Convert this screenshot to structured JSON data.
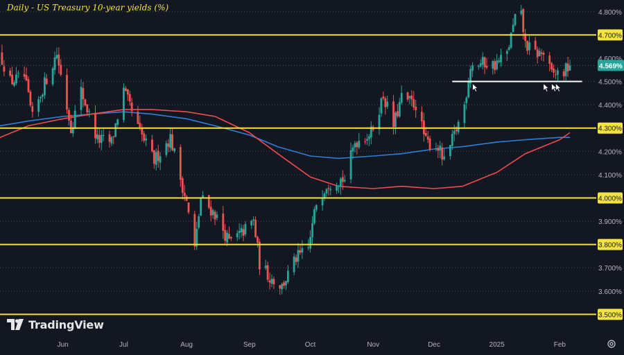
{
  "title": "Daily - US Treasury 10-year yields (%)",
  "brand": "TradingView",
  "icons": {
    "logo": "tradingview-logo-icon",
    "settings": "gear-icon"
  },
  "colors": {
    "background": "#131722",
    "up": "#26a69a",
    "down": "#ef5350",
    "level": "#f5e342",
    "ma_short": "#ef4b4b",
    "ma_long": "#2f7ed8",
    "support": "#ffffff"
  },
  "chart_data": {
    "type": "candlestick",
    "y_range": [
      3.4,
      4.85
    ],
    "yticks": [
      "4.800%",
      "4.700%",
      "4.600%",
      "4.500%",
      "4.400%",
      "4.300%",
      "4.200%",
      "4.100%",
      "4.000%",
      "3.900%",
      "3.800%",
      "3.700%",
      "3.600%",
      "3.500%"
    ],
    "ytick_values": [
      4.8,
      4.7,
      4.6,
      4.5,
      4.4,
      4.3,
      4.2,
      4.1,
      4.0,
      3.9,
      3.8,
      3.7,
      3.6,
      3.5
    ],
    "xticks": [
      "Jun",
      "Jul",
      "Aug",
      "Sep",
      "Oct",
      "Nov",
      "Dec",
      "2025",
      "Feb"
    ],
    "xtick_dates": [
      "2024-06-01",
      "2024-07-01",
      "2024-08-01",
      "2024-09-01",
      "2024-10-01",
      "2024-11-01",
      "2024-12-01",
      "2025-01-01",
      "2025-02-01"
    ],
    "x_range": [
      "2024-05-01",
      "2025-02-19"
    ],
    "current_value": 4.569,
    "current_label": "4.569%",
    "horizontal_levels": [
      4.7,
      4.3,
      4.0,
      3.8,
      3.5
    ],
    "horizontal_level_labels": [
      "4.700%",
      "4.300%",
      "4.000%",
      "3.800%",
      "3.500%"
    ],
    "support_line": {
      "value": 4.5,
      "from": "2024-12-10",
      "to": "2025-02-12"
    },
    "support_arrows": [
      "2024-12-20",
      "2025-01-24",
      "2025-01-28",
      "2025-01-30"
    ],
    "ma_long": [
      [
        "2024-05-01",
        4.31
      ],
      [
        "2024-05-15",
        4.33
      ],
      [
        "2024-06-01",
        4.35
      ],
      [
        "2024-06-15",
        4.36
      ],
      [
        "2024-07-01",
        4.37
      ],
      [
        "2024-07-15",
        4.36
      ],
      [
        "2024-08-01",
        4.34
      ],
      [
        "2024-08-15",
        4.31
      ],
      [
        "2024-09-01",
        4.27
      ],
      [
        "2024-09-15",
        4.22
      ],
      [
        "2024-10-01",
        4.18
      ],
      [
        "2024-10-15",
        4.17
      ],
      [
        "2024-11-01",
        4.18
      ],
      [
        "2024-11-15",
        4.19
      ],
      [
        "2024-12-01",
        4.21
      ],
      [
        "2024-12-15",
        4.22
      ],
      [
        "2025-01-01",
        4.24
      ],
      [
        "2025-01-15",
        4.25
      ],
      [
        "2025-02-01",
        4.26
      ],
      [
        "2025-02-06",
        4.26
      ]
    ],
    "ma_short": [
      [
        "2024-05-01",
        4.26
      ],
      [
        "2024-05-15",
        4.31
      ],
      [
        "2024-06-01",
        4.34
      ],
      [
        "2024-06-15",
        4.36
      ],
      [
        "2024-07-01",
        4.38
      ],
      [
        "2024-07-15",
        4.38
      ],
      [
        "2024-08-01",
        4.37
      ],
      [
        "2024-08-15",
        4.35
      ],
      [
        "2024-09-01",
        4.28
      ],
      [
        "2024-09-15",
        4.19
      ],
      [
        "2024-10-01",
        4.09
      ],
      [
        "2024-10-15",
        4.05
      ],
      [
        "2024-11-01",
        4.04
      ],
      [
        "2024-11-15",
        4.05
      ],
      [
        "2024-12-01",
        4.04
      ],
      [
        "2024-12-15",
        4.05
      ],
      [
        "2025-01-01",
        4.11
      ],
      [
        "2025-01-15",
        4.19
      ],
      [
        "2025-02-01",
        4.25
      ],
      [
        "2025-02-06",
        4.28
      ]
    ],
    "candle_path": [
      [
        "2024-05-01",
        4.62
      ],
      [
        "2024-05-06",
        4.5
      ],
      [
        "2024-05-13",
        4.52
      ],
      [
        "2024-05-17",
        4.34
      ],
      [
        "2024-05-22",
        4.47
      ],
      [
        "2024-05-29",
        4.62
      ],
      [
        "2024-06-05",
        4.3
      ],
      [
        "2024-06-10",
        4.46
      ],
      [
        "2024-06-18",
        4.25
      ],
      [
        "2024-06-25",
        4.24
      ],
      [
        "2024-07-01",
        4.46
      ],
      [
        "2024-07-08",
        4.3
      ],
      [
        "2024-07-16",
        4.16
      ],
      [
        "2024-07-24",
        4.26
      ],
      [
        "2024-08-01",
        3.98
      ],
      [
        "2024-08-05",
        3.78
      ],
      [
        "2024-08-08",
        4.0
      ],
      [
        "2024-08-15",
        3.93
      ],
      [
        "2024-08-22",
        3.81
      ],
      [
        "2024-08-27",
        3.84
      ],
      [
        "2024-09-03",
        3.9
      ],
      [
        "2024-09-06",
        3.72
      ],
      [
        "2024-09-11",
        3.66
      ],
      [
        "2024-09-17",
        3.62
      ],
      [
        "2024-09-24",
        3.74
      ],
      [
        "2024-09-30",
        3.78
      ],
      [
        "2024-10-04",
        3.98
      ],
      [
        "2024-10-09",
        4.06
      ],
      [
        "2024-10-14",
        4.08
      ],
      [
        "2024-10-18",
        4.08
      ],
      [
        "2024-10-23",
        4.24
      ],
      [
        "2024-10-31",
        4.28
      ],
      [
        "2024-11-06",
        4.44
      ],
      [
        "2024-11-11",
        4.31
      ],
      [
        "2024-11-15",
        4.43
      ],
      [
        "2024-11-22",
        4.4
      ],
      [
        "2024-11-27",
        4.24
      ],
      [
        "2024-12-03",
        4.22
      ],
      [
        "2024-12-06",
        4.15
      ],
      [
        "2024-12-11",
        4.27
      ],
      [
        "2024-12-16",
        4.4
      ],
      [
        "2024-12-19",
        4.57
      ],
      [
        "2024-12-26",
        4.58
      ],
      [
        "2024-12-31",
        4.57
      ],
      [
        "2025-01-06",
        4.62
      ],
      [
        "2025-01-10",
        4.77
      ],
      [
        "2025-01-13",
        4.78
      ],
      [
        "2025-01-15",
        4.66
      ],
      [
        "2025-01-20",
        4.62
      ],
      [
        "2025-01-24",
        4.62
      ],
      [
        "2025-01-28",
        4.53
      ],
      [
        "2025-02-03",
        4.54
      ],
      [
        "2025-02-06",
        4.57
      ]
    ]
  }
}
